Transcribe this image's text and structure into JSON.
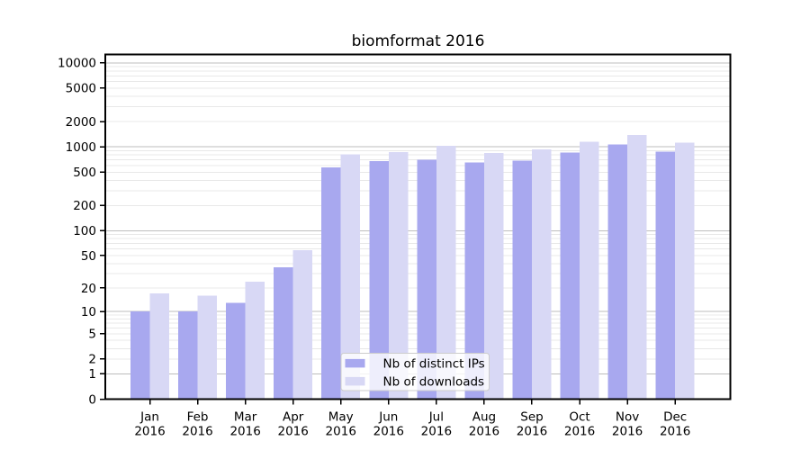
{
  "chart_data": {
    "type": "bar",
    "title": "biomformat 2016",
    "y_scale": "log10(1+y)",
    "categories": [
      "Jan",
      "Feb",
      "Mar",
      "Apr",
      "May",
      "Jun",
      "Jul",
      "Aug",
      "Sep",
      "Oct",
      "Nov",
      "Dec"
    ],
    "year_label": "2016",
    "series": [
      {
        "name": "Nb of distinct IPs",
        "color": "#a8a8ef",
        "values": [
          10,
          10,
          13,
          36,
          572,
          676,
          699,
          655,
          688,
          860,
          1063,
          882
        ]
      },
      {
        "name": "Nb of downloads",
        "color": "#d8d8f5",
        "values": [
          17,
          16,
          24,
          58,
          810,
          865,
          1035,
          845,
          932,
          1145,
          1385,
          1128
        ]
      }
    ],
    "yticks": [
      0,
      1,
      2,
      5,
      10,
      20,
      50,
      100,
      200,
      500,
      1000,
      2000,
      5000,
      10000
    ],
    "ylim": [
      0,
      12500
    ],
    "xlabel": "",
    "ylabel": "",
    "grid": {
      "horizontal": true,
      "vertical": false,
      "minor": true
    },
    "legend_position": "inside-bottom-center"
  },
  "colors": {
    "background": "#ffffff",
    "axis": "#000000",
    "major_grid": "#bdbdbd",
    "minor_grid": "#e8e8e8",
    "legend_border": "#cccccc",
    "legend_fill": "#ffffff",
    "text": "#000000"
  }
}
